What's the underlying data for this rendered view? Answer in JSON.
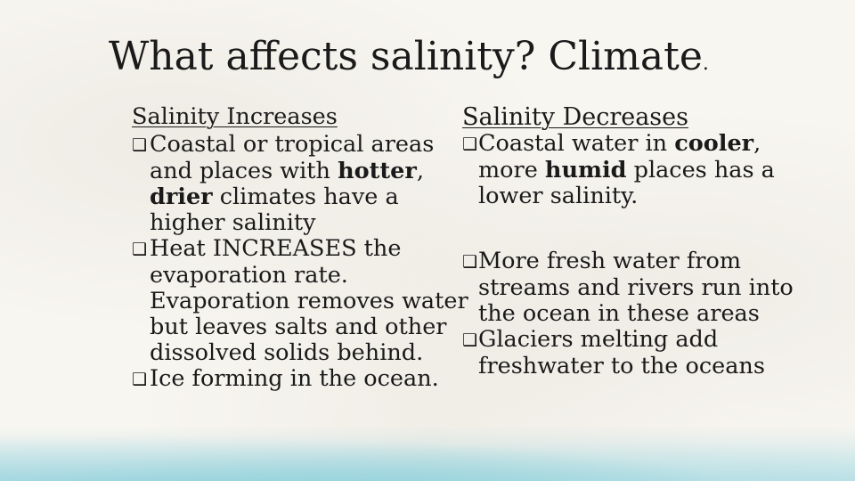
{
  "slide": {
    "title": "What affects salinity?   Climate",
    "title_period": "."
  },
  "left": {
    "heading": "Salinity Increases",
    "items": [
      {
        "parts": [
          "Coastal or tropical areas and places with ",
          "hotter",
          ", ",
          "drier",
          " climates have a higher salinity"
        ]
      },
      {
        "parts": [
          "Heat INCREASES the evaporation rate. Evaporation removes water but leaves salts and other dissolved solids behind."
        ]
      },
      {
        "parts": [
          "Ice forming in the ocean."
        ]
      }
    ]
  },
  "right": {
    "heading": "Salinity Decreases",
    "items": [
      {
        "parts": [
          "Coastal water in ",
          "cooler",
          ", more ",
          "humid",
          " places has a lower salinity."
        ]
      },
      {
        "parts": [
          "More fresh water from streams and rivers run into the ocean in these areas"
        ]
      },
      {
        "parts": [
          "Glaciers melting add freshwater to the oceans"
        ]
      }
    ]
  },
  "bullet_glyph": "❑"
}
